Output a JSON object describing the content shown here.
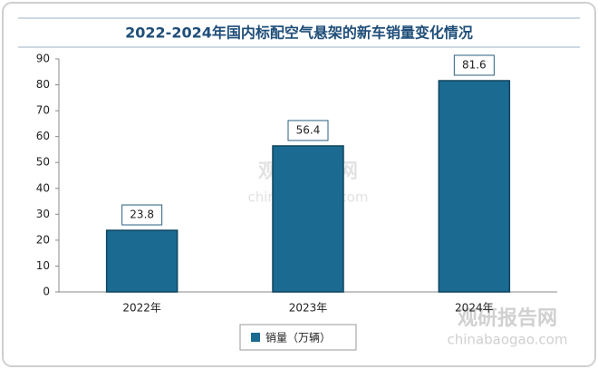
{
  "chart_data": {
    "type": "bar",
    "title": "2022-2024年国内标配空气悬架的新车销量变化情况",
    "categories": [
      "2022年",
      "2023年",
      "2024年"
    ],
    "series": [
      {
        "name": "销量（万辆）",
        "color": "#1b6a91",
        "values": [
          23.8,
          56.4,
          81.6
        ]
      }
    ],
    "ylim": [
      0,
      90
    ],
    "yticks": [
      0,
      10,
      20,
      30,
      40,
      50,
      60,
      70,
      80,
      90
    ],
    "grid": false,
    "legend": "bottom",
    "watermark": {
      "name": "观研报告网",
      "url": "chinabaogao.com"
    }
  }
}
